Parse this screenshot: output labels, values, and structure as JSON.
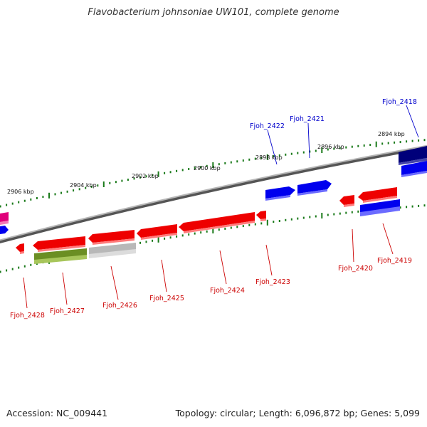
{
  "title": "Flavobacterium johnsoniae UW101, complete genome",
  "footer": {
    "accession": "Accession: NC_009441",
    "summary": "Topology: circular; Length: 6,096,872 bp; Genes: 5,099"
  },
  "colors": {
    "forward_gene": "#0000ee",
    "forward_gene_dark": "#00007a",
    "reverse_gene": "#ee0000",
    "green_gene": "#6b8e23",
    "grey_gene": "#b8b8b8",
    "magenta_gene": "#e0007a",
    "backbone": "#8a8a8a",
    "tick": "#1a7a1a",
    "forward_label": "#0000cc",
    "reverse_label": "#cc0000"
  },
  "kbp_labels": [
    "2894 kbp",
    "2896 kbp",
    "2898 kbp",
    "2900 kbp",
    "2902 kbp",
    "2904 kbp",
    "2906 kbp"
  ],
  "forward_genes": [
    {
      "label": "Fjoh_2418",
      "color": "dark"
    },
    {
      "label": "Fjoh_2421",
      "color": "blue"
    },
    {
      "label": "Fjoh_2422",
      "color": "blue"
    }
  ],
  "reverse_genes": [
    {
      "label": "Fjoh_2419",
      "color": "blue"
    },
    {
      "label": "Fjoh_2420",
      "color": "red"
    },
    {
      "label": "Fjoh_2423",
      "color": "red"
    },
    {
      "label": "Fjoh_2424",
      "color": "red"
    },
    {
      "label": "Fjoh_2425",
      "color": "red"
    },
    {
      "label": "Fjoh_2426",
      "color": "grey"
    },
    {
      "label": "Fjoh_2427",
      "color": "green"
    },
    {
      "label": "Fjoh_2428",
      "color": "red"
    }
  ]
}
